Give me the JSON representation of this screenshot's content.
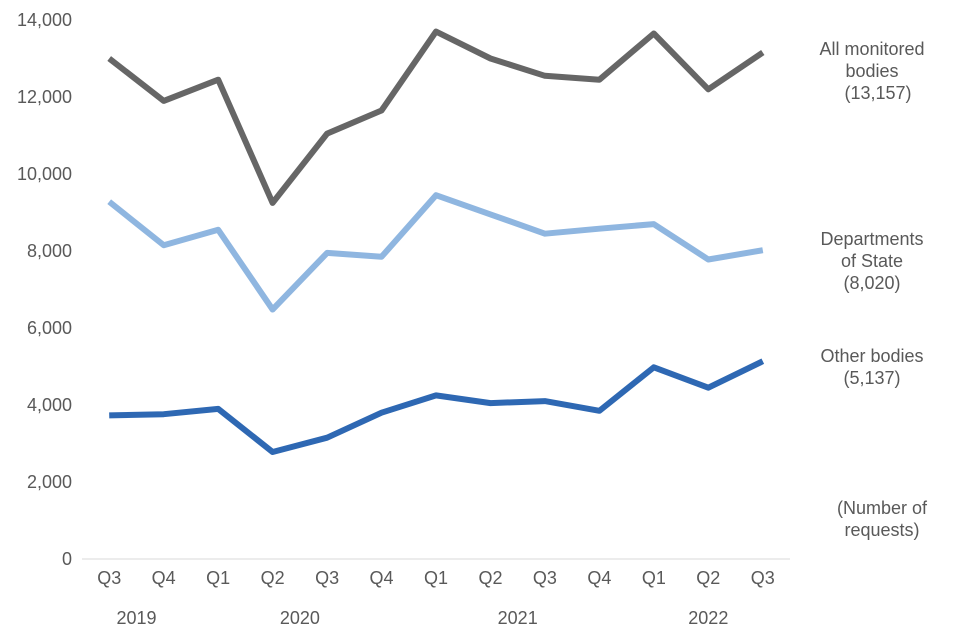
{
  "chart_data": {
    "type": "line",
    "title": "",
    "xlabel": "",
    "ylabel": "",
    "ylim": [
      0,
      14000
    ],
    "yticks": [
      "0",
      "2,000",
      "4,000",
      "6,000",
      "8,000",
      "10,000",
      "12,000",
      "14,000"
    ],
    "grid": false,
    "legend": "right (labels beside line ends)",
    "categories": [
      "Q3",
      "Q4",
      "Q1",
      "Q2",
      "Q3",
      "Q4",
      "Q1",
      "Q2",
      "Q3",
      "Q4",
      "Q1",
      "Q2",
      "Q3"
    ],
    "years": [
      {
        "label": "2019",
        "start": 0,
        "end": 1
      },
      {
        "label": "2020",
        "start": 2,
        "end": 5
      },
      {
        "label": "2021",
        "start": 6,
        "end": 9
      },
      {
        "label": "2022",
        "start": 10,
        "end": 12
      }
    ],
    "series": [
      {
        "color": "#666666",
        "label_lines": [
          "All monitored",
          "bodies",
          "(13,157)"
        ],
        "values": [
          13000,
          11900,
          12450,
          9250,
          11050,
          11650,
          13700,
          13000,
          12550,
          12450,
          13650,
          12200,
          13157
        ]
      },
      {
        "color": "#8fb6e0",
        "label_lines": [
          "Departments",
          "of State",
          "(8,020)"
        ],
        "values": [
          9280,
          8150,
          8550,
          6480,
          7950,
          7850,
          9450,
          8950,
          8450,
          8580,
          8700,
          7780,
          8020
        ]
      },
      {
        "color": "#2e68b3",
        "label_lines": [
          "Other bodies",
          "(5,137)"
        ],
        "values": [
          3730,
          3760,
          3900,
          2780,
          3150,
          3800,
          4250,
          4050,
          4100,
          3850,
          4980,
          4450,
          5137
        ]
      }
    ],
    "unit_note_lines": [
      "(Number of",
      "requests)"
    ]
  }
}
